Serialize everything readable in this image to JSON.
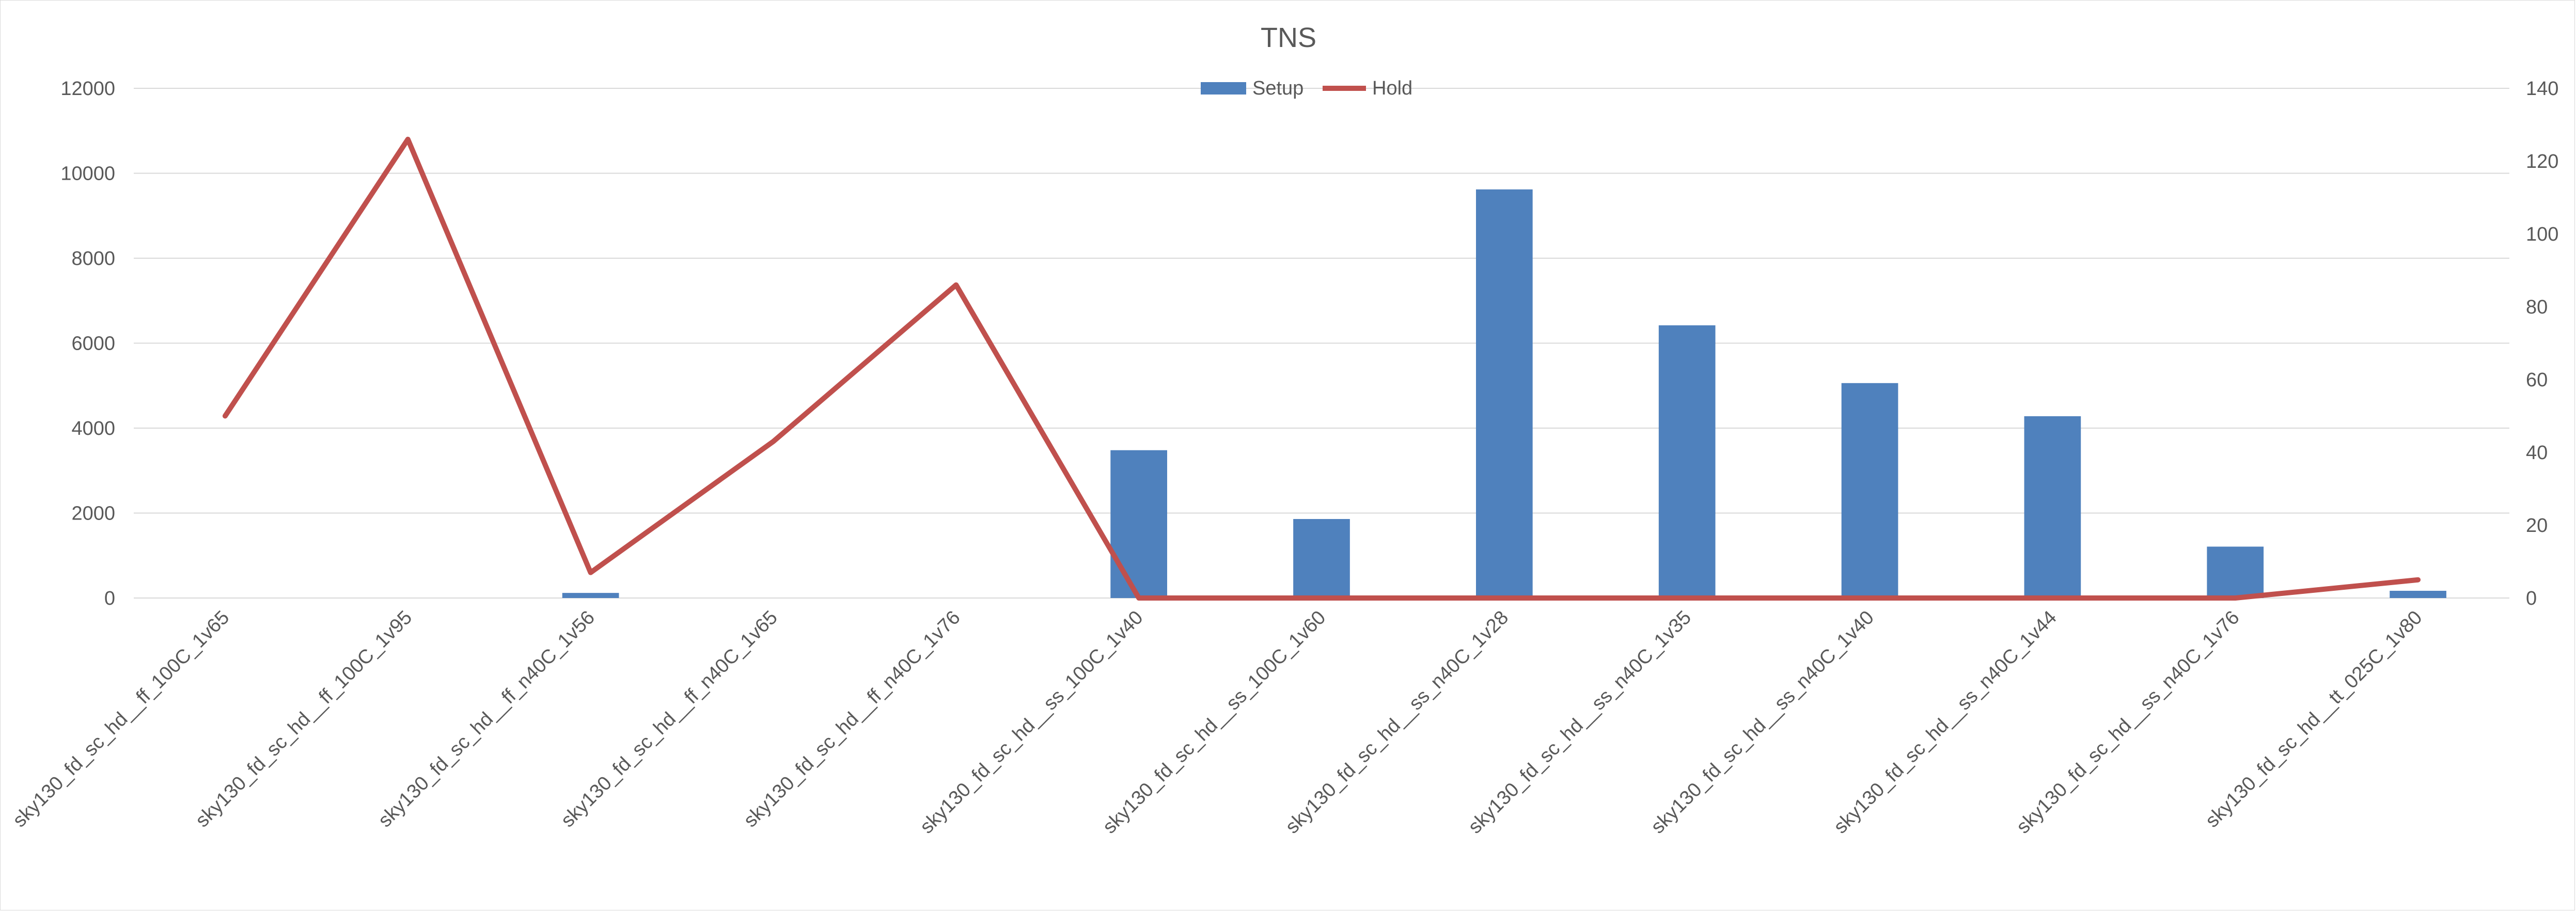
{
  "chart_data": {
    "type": "bar",
    "title": "TNS",
    "categories": [
      "sky130_fd_sc_hd__ff_100C_1v65",
      "sky130_fd_sc_hd__ff_100C_1v95",
      "sky130_fd_sc_hd__ff_n40C_1v56",
      "sky130_fd_sc_hd__ff_n40C_1v65",
      "sky130_fd_sc_hd__ff_n40C_1v76",
      "sky130_fd_sc_hd__ss_100C_1v40",
      "sky130_fd_sc_hd__ss_100C_1v60",
      "sky130_fd_sc_hd__ss_n40C_1v28",
      "sky130_fd_sc_hd__ss_n40C_1v35",
      "sky130_fd_sc_hd__ss_n40C_1v40",
      "sky130_fd_sc_hd__ss_n40C_1v44",
      "sky130_fd_sc_hd__ss_n40C_1v76",
      "sky130_fd_sc_hd__tt_025C_1v80"
    ],
    "series": [
      {
        "name": "Setup",
        "type": "bar",
        "axis": "left",
        "color": "#4f81bd",
        "values": [
          0,
          0,
          120,
          0,
          0,
          3480,
          1860,
          9620,
          6420,
          5060,
          4280,
          1210,
          170
        ]
      },
      {
        "name": "Hold",
        "type": "line",
        "axis": "right",
        "color": "#c0504d",
        "values": [
          50,
          126,
          7,
          43,
          86,
          0,
          0,
          0,
          0,
          0,
          0,
          0,
          5
        ]
      }
    ],
    "y_left": {
      "ylim": [
        0,
        12000
      ],
      "ticks": [
        "0",
        "2000",
        "4000",
        "6000",
        "8000",
        "10000",
        "12000"
      ]
    },
    "y_right": {
      "ylim": [
        0,
        140
      ],
      "ticks": [
        "0",
        "20",
        "40",
        "60",
        "80",
        "100",
        "120",
        "140"
      ]
    },
    "legend_position": "top-center",
    "grid": true
  }
}
